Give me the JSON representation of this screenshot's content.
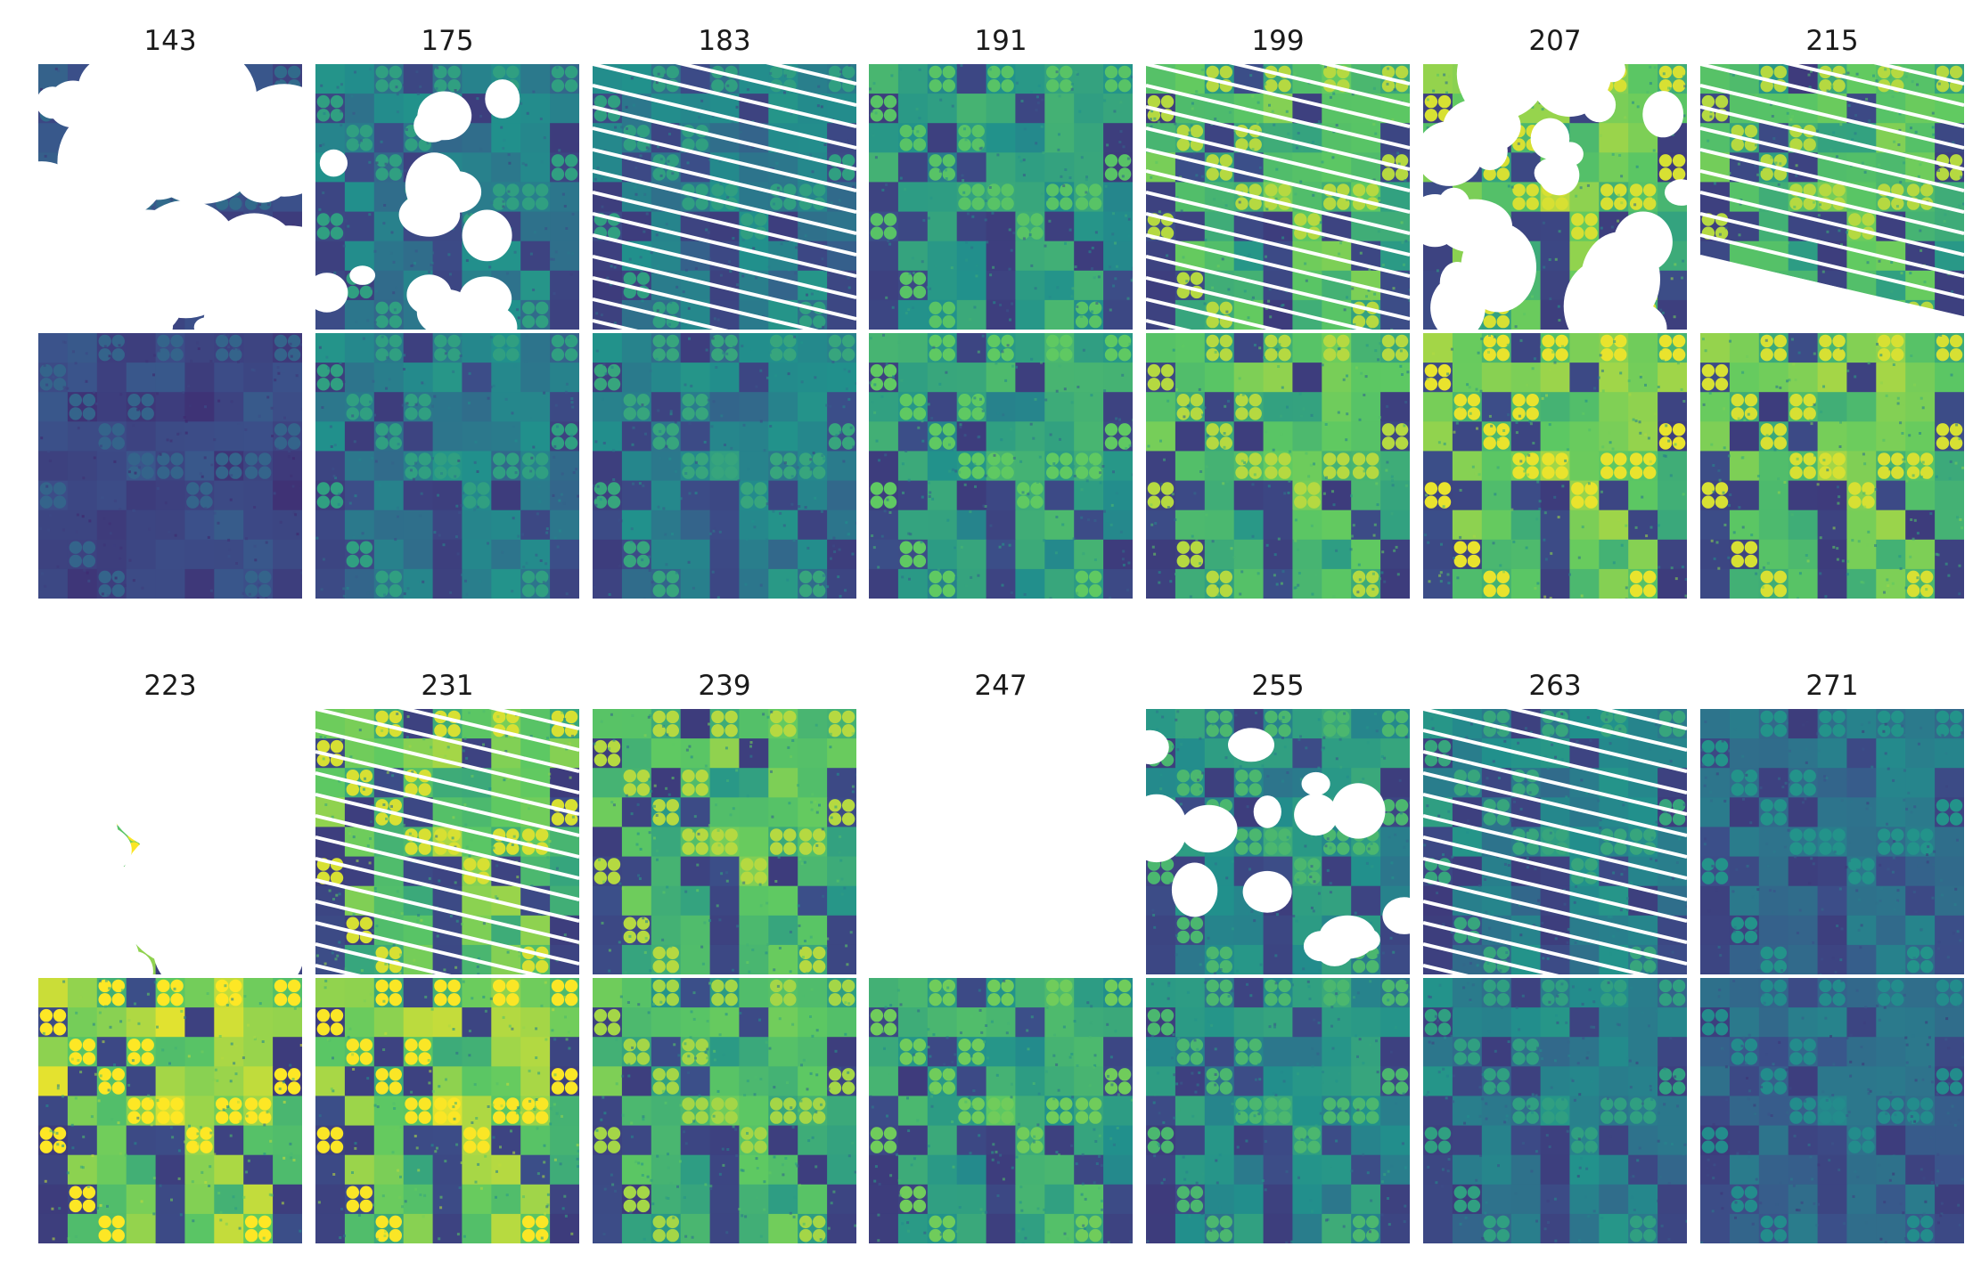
{
  "figure": {
    "rows": [
      {
        "days": [
          "143",
          "175",
          "183",
          "191",
          "199",
          "207",
          "215"
        ],
        "observed": [
          {
            "style": "cloud",
            "brightness": 0.22,
            "missing": 0.7,
            "seed": 11
          },
          {
            "style": "clear",
            "brightness": 0.38,
            "missing": 0.02,
            "seed": 23
          },
          {
            "style": "stripes",
            "brightness": 0.38,
            "missing": 0.08,
            "seed": 37
          },
          {
            "style": "clear",
            "brightness": 0.5,
            "missing": 0.0,
            "seed": 41
          },
          {
            "style": "stripes",
            "brightness": 0.62,
            "missing": 0.0,
            "seed": 53
          },
          {
            "style": "cloud",
            "brightness": 0.66,
            "missing": 0.35,
            "seed": 67
          },
          {
            "style": "stripes-cut",
            "brightness": 0.62,
            "missing": 0.25,
            "seed": 71
          }
        ],
        "reconstructed": [
          {
            "brightness": 0.2,
            "seed": 13
          },
          {
            "brightness": 0.38,
            "seed": 29
          },
          {
            "brightness": 0.4,
            "seed": 31
          },
          {
            "brightness": 0.52,
            "seed": 43
          },
          {
            "brightness": 0.62,
            "seed": 59
          },
          {
            "brightness": 0.68,
            "seed": 61
          },
          {
            "brightness": 0.66,
            "seed": 73
          }
        ]
      },
      {
        "days": [
          "223",
          "231",
          "239",
          "247",
          "255",
          "263",
          "271"
        ],
        "observed": [
          {
            "style": "cloud",
            "brightness": 0.7,
            "missing": 0.9,
            "seed": 79
          },
          {
            "style": "stripes",
            "brightness": 0.66,
            "missing": 0.0,
            "seed": 83
          },
          {
            "style": "clear",
            "brightness": 0.62,
            "missing": 0.0,
            "seed": 89
          },
          {
            "style": "empty",
            "brightness": 0.5,
            "missing": 1.0,
            "seed": 97
          },
          {
            "style": "clear",
            "brightness": 0.46,
            "missing": 0.02,
            "seed": 101
          },
          {
            "style": "stripes",
            "brightness": 0.4,
            "missing": 0.0,
            "seed": 103
          },
          {
            "style": "clear",
            "brightness": 0.34,
            "missing": 0.0,
            "seed": 107
          }
        ],
        "reconstructed": [
          {
            "brightness": 0.72,
            "seed": 109
          },
          {
            "brightness": 0.7,
            "seed": 113
          },
          {
            "brightness": 0.6,
            "seed": 127
          },
          {
            "brightness": 0.54,
            "seed": 131
          },
          {
            "brightness": 0.46,
            "seed": 137
          },
          {
            "brightness": 0.38,
            "seed": 139
          },
          {
            "brightness": 0.32,
            "seed": 149
          }
        ]
      }
    ],
    "colormap": [
      "#440154",
      "#3b528b",
      "#21918c",
      "#5ec962",
      "#fde725"
    ]
  }
}
